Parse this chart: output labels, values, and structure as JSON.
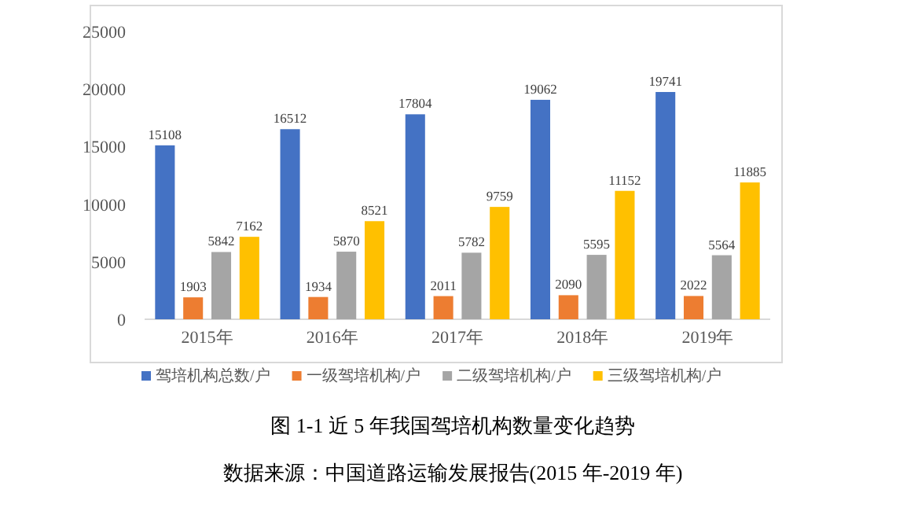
{
  "chart_data": {
    "type": "bar",
    "title": "图 1-1 近 5 年我国驾培机构数量变化趋势",
    "categories": [
      "2015年",
      "2016年",
      "2017年",
      "2018年",
      "2019年"
    ],
    "series": [
      {
        "name": "驾培机构总数/户",
        "color": "#4472c4",
        "values": [
          15108,
          16512,
          17804,
          19062,
          19741
        ]
      },
      {
        "name": "一级驾培机构/户",
        "color": "#ed7d31",
        "values": [
          1903,
          1934,
          2011,
          2090,
          2022
        ]
      },
      {
        "name": "二级驾培机构/户",
        "color": "#a5a5a5",
        "values": [
          5842,
          5870,
          5782,
          5595,
          5564
        ]
      },
      {
        "name": "三级驾培机构/户",
        "color": "#ffc000",
        "values": [
          7162,
          8521,
          9759,
          11152,
          11885
        ]
      }
    ],
    "ylim": [
      0,
      25000
    ],
    "yticks": [
      0,
      5000,
      10000,
      15000,
      20000,
      25000
    ],
    "data_labels": true,
    "grid": false,
    "legend": "bottom",
    "annotations": [
      "数据来源：中国道路运输发展报告(2015 年-2019 年)"
    ]
  }
}
